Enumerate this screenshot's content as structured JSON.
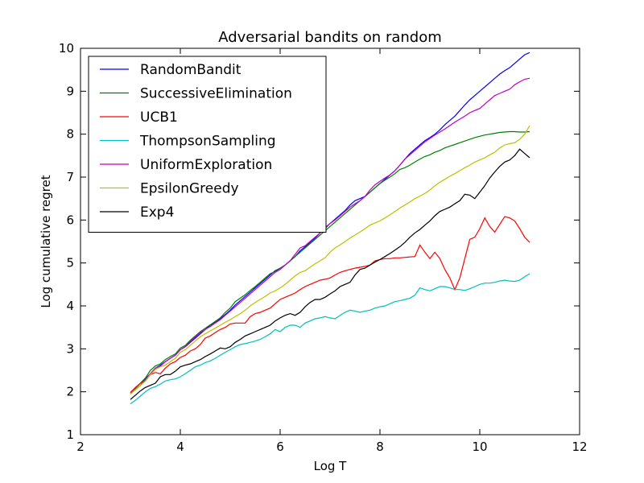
{
  "chart_data": {
    "type": "line",
    "title": "Adversarial bandits on random",
    "xlabel": "Log T",
    "ylabel": "Log cumulative regret",
    "xlim": [
      2,
      12
    ],
    "ylim": [
      1,
      10
    ],
    "xticks": [
      "2",
      "4",
      "6",
      "8",
      "10",
      "12"
    ],
    "yticks": [
      "1",
      "2",
      "3",
      "4",
      "5",
      "6",
      "7",
      "8",
      "9",
      "10"
    ],
    "grid": false,
    "legend_position": "top-left",
    "x": [
      3.0,
      3.1,
      3.2,
      3.3,
      3.4,
      3.5,
      3.6,
      3.7,
      3.8,
      3.9,
      4.0,
      4.1,
      4.2,
      4.3,
      4.4,
      4.5,
      4.6,
      4.7,
      4.8,
      4.9,
      5.0,
      5.1,
      5.2,
      5.3,
      5.4,
      5.5,
      5.6,
      5.7,
      5.8,
      5.9,
      6.0,
      6.1,
      6.2,
      6.3,
      6.4,
      6.5,
      6.6,
      6.7,
      6.8,
      6.9,
      7.0,
      7.1,
      7.2,
      7.3,
      7.4,
      7.5,
      7.6,
      7.7,
      7.8,
      7.9,
      8.0,
      8.1,
      8.2,
      8.3,
      8.4,
      8.5,
      8.6,
      8.7,
      8.8,
      8.9,
      9.0,
      9.1,
      9.2,
      9.3,
      9.4,
      9.5,
      9.6,
      9.7,
      9.8,
      9.9,
      10.0,
      10.1,
      10.2,
      10.3,
      10.4,
      10.5,
      10.6,
      10.7,
      10.8,
      10.9,
      11.0
    ],
    "series": [
      {
        "name": "RandomBandit",
        "color": "#0000ff",
        "values": [
          1.95,
          2.05,
          2.15,
          2.3,
          2.42,
          2.55,
          2.62,
          2.7,
          2.78,
          2.85,
          2.98,
          3.05,
          3.15,
          3.25,
          3.35,
          3.45,
          3.55,
          3.62,
          3.7,
          3.8,
          3.9,
          4.02,
          4.12,
          4.22,
          4.32,
          4.42,
          4.52,
          4.62,
          4.72,
          4.82,
          4.88,
          4.95,
          5.05,
          5.15,
          5.28,
          5.38,
          5.48,
          5.58,
          5.7,
          5.82,
          5.92,
          6.02,
          6.12,
          6.22,
          6.35,
          6.45,
          6.5,
          6.55,
          6.65,
          6.75,
          6.85,
          6.95,
          7.05,
          7.15,
          7.28,
          7.42,
          7.55,
          7.65,
          7.75,
          7.85,
          7.92,
          8.0,
          8.1,
          8.22,
          8.32,
          8.42,
          8.55,
          8.68,
          8.8,
          8.9,
          9.0,
          9.1,
          9.2,
          9.3,
          9.4,
          9.48,
          9.55,
          9.65,
          9.75,
          9.85,
          9.9
        ]
      },
      {
        "name": "SuccessiveElimination",
        "color": "#008000",
        "values": [
          1.98,
          2.08,
          2.2,
          2.32,
          2.5,
          2.6,
          2.65,
          2.75,
          2.82,
          2.88,
          3.02,
          3.08,
          3.2,
          3.3,
          3.4,
          3.48,
          3.56,
          3.64,
          3.72,
          3.85,
          3.95,
          4.1,
          4.18,
          4.26,
          4.36,
          4.45,
          4.55,
          4.65,
          4.75,
          4.8,
          4.88,
          4.95,
          5.05,
          5.15,
          5.25,
          5.35,
          5.45,
          5.55,
          5.65,
          5.75,
          5.85,
          5.95,
          6.05,
          6.15,
          6.25,
          6.35,
          6.45,
          6.55,
          6.65,
          6.75,
          6.85,
          6.93,
          7.0,
          7.08,
          7.18,
          7.22,
          7.28,
          7.35,
          7.42,
          7.48,
          7.52,
          7.58,
          7.62,
          7.68,
          7.72,
          7.76,
          7.8,
          7.84,
          7.88,
          7.92,
          7.95,
          7.98,
          8.0,
          8.02,
          8.04,
          8.05,
          8.06,
          8.06,
          8.05,
          8.05,
          8.06
        ]
      },
      {
        "name": "UCB1",
        "color": "#ff0000",
        "values": [
          1.98,
          2.1,
          2.2,
          2.25,
          2.4,
          2.45,
          2.42,
          2.55,
          2.65,
          2.7,
          2.8,
          2.85,
          2.95,
          3.0,
          3.1,
          3.25,
          3.3,
          3.38,
          3.45,
          3.5,
          3.58,
          3.6,
          3.6,
          3.6,
          3.75,
          3.82,
          3.85,
          3.9,
          3.95,
          4.05,
          4.15,
          4.2,
          4.25,
          4.3,
          4.38,
          4.45,
          4.5,
          4.55,
          4.6,
          4.62,
          4.65,
          4.72,
          4.78,
          4.82,
          4.85,
          4.88,
          4.9,
          4.92,
          4.95,
          5.05,
          5.08,
          5.1,
          5.1,
          5.12,
          5.12,
          5.13,
          5.14,
          5.15,
          5.42,
          5.25,
          5.1,
          5.25,
          5.1,
          4.85,
          4.65,
          4.38,
          4.65,
          5.1,
          5.55,
          5.6,
          5.8,
          6.05,
          5.85,
          5.72,
          5.9,
          6.08,
          6.05,
          5.98,
          5.8,
          5.6,
          5.48
        ]
      },
      {
        "name": "ThompsonSampling",
        "color": "#00bfbf",
        "values": [
          1.72,
          1.8,
          1.9,
          2.0,
          2.08,
          2.12,
          2.18,
          2.25,
          2.28,
          2.3,
          2.35,
          2.42,
          2.5,
          2.58,
          2.62,
          2.68,
          2.72,
          2.78,
          2.85,
          2.92,
          2.98,
          3.05,
          3.1,
          3.12,
          3.15,
          3.18,
          3.22,
          3.28,
          3.35,
          3.45,
          3.4,
          3.5,
          3.55,
          3.55,
          3.5,
          3.6,
          3.65,
          3.7,
          3.72,
          3.75,
          3.72,
          3.7,
          3.78,
          3.85,
          3.9,
          3.88,
          3.85,
          3.88,
          3.9,
          3.95,
          3.98,
          4.0,
          4.05,
          4.1,
          4.12,
          4.15,
          4.18,
          4.25,
          4.42,
          4.38,
          4.35,
          4.4,
          4.45,
          4.45,
          4.42,
          4.38,
          4.38,
          4.36,
          4.4,
          4.45,
          4.5,
          4.53,
          4.53,
          4.55,
          4.58,
          4.6,
          4.58,
          4.57,
          4.6,
          4.68,
          4.75
        ]
      },
      {
        "name": "UniformExploration",
        "color": "#bf00bf",
        "values": [
          1.95,
          2.05,
          2.15,
          2.28,
          2.42,
          2.55,
          2.6,
          2.7,
          2.78,
          2.85,
          2.98,
          3.05,
          3.18,
          3.28,
          3.38,
          3.45,
          3.52,
          3.6,
          3.68,
          3.78,
          3.88,
          3.98,
          4.08,
          4.18,
          4.28,
          4.38,
          4.48,
          4.58,
          4.68,
          4.78,
          4.85,
          4.95,
          5.05,
          5.2,
          5.35,
          5.4,
          5.5,
          5.6,
          5.7,
          5.8,
          5.92,
          6.0,
          6.1,
          6.2,
          6.3,
          6.38,
          6.45,
          6.55,
          6.7,
          6.82,
          6.9,
          6.98,
          7.05,
          7.15,
          7.28,
          7.42,
          7.52,
          7.62,
          7.72,
          7.82,
          7.9,
          7.98,
          8.05,
          8.12,
          8.2,
          8.28,
          8.35,
          8.42,
          8.5,
          8.55,
          8.6,
          8.7,
          8.8,
          8.9,
          8.95,
          9.0,
          9.05,
          9.15,
          9.22,
          9.28,
          9.3
        ]
      },
      {
        "name": "EpsilonGreedy",
        "color": "#bfbf00",
        "values": [
          1.95,
          2.05,
          2.15,
          2.25,
          2.4,
          2.52,
          2.58,
          2.62,
          2.7,
          2.78,
          2.92,
          2.98,
          3.08,
          3.18,
          3.28,
          3.35,
          3.42,
          3.48,
          3.55,
          3.62,
          3.68,
          3.75,
          3.82,
          3.9,
          4.0,
          4.08,
          4.15,
          4.22,
          4.3,
          4.35,
          4.42,
          4.5,
          4.6,
          4.7,
          4.78,
          4.82,
          4.9,
          4.98,
          5.05,
          5.12,
          5.25,
          5.35,
          5.42,
          5.5,
          5.58,
          5.65,
          5.72,
          5.8,
          5.88,
          5.93,
          5.98,
          6.05,
          6.12,
          6.2,
          6.28,
          6.35,
          6.42,
          6.5,
          6.56,
          6.62,
          6.7,
          6.8,
          6.88,
          6.95,
          7.02,
          7.08,
          7.15,
          7.22,
          7.28,
          7.35,
          7.4,
          7.45,
          7.52,
          7.58,
          7.68,
          7.75,
          7.78,
          7.8,
          7.88,
          8.0,
          8.2
        ]
      },
      {
        "name": "Exp4",
        "color": "#000000",
        "values": [
          1.82,
          1.92,
          2.02,
          2.1,
          2.15,
          2.2,
          2.35,
          2.4,
          2.4,
          2.48,
          2.58,
          2.62,
          2.65,
          2.7,
          2.75,
          2.82,
          2.88,
          2.95,
          3.02,
          3.0,
          3.05,
          3.15,
          3.22,
          3.3,
          3.35,
          3.4,
          3.45,
          3.5,
          3.55,
          3.65,
          3.72,
          3.78,
          3.82,
          3.78,
          3.85,
          3.98,
          4.08,
          4.15,
          4.15,
          4.2,
          4.28,
          4.35,
          4.45,
          4.5,
          4.55,
          4.72,
          4.85,
          4.88,
          4.95,
          5.02,
          5.08,
          5.15,
          5.22,
          5.3,
          5.38,
          5.48,
          5.6,
          5.7,
          5.78,
          5.88,
          5.98,
          6.1,
          6.2,
          6.25,
          6.3,
          6.38,
          6.45,
          6.6,
          6.58,
          6.5,
          6.65,
          6.8,
          6.98,
          7.12,
          7.25,
          7.35,
          7.4,
          7.5,
          7.65,
          7.55,
          7.45
        ]
      }
    ]
  }
}
